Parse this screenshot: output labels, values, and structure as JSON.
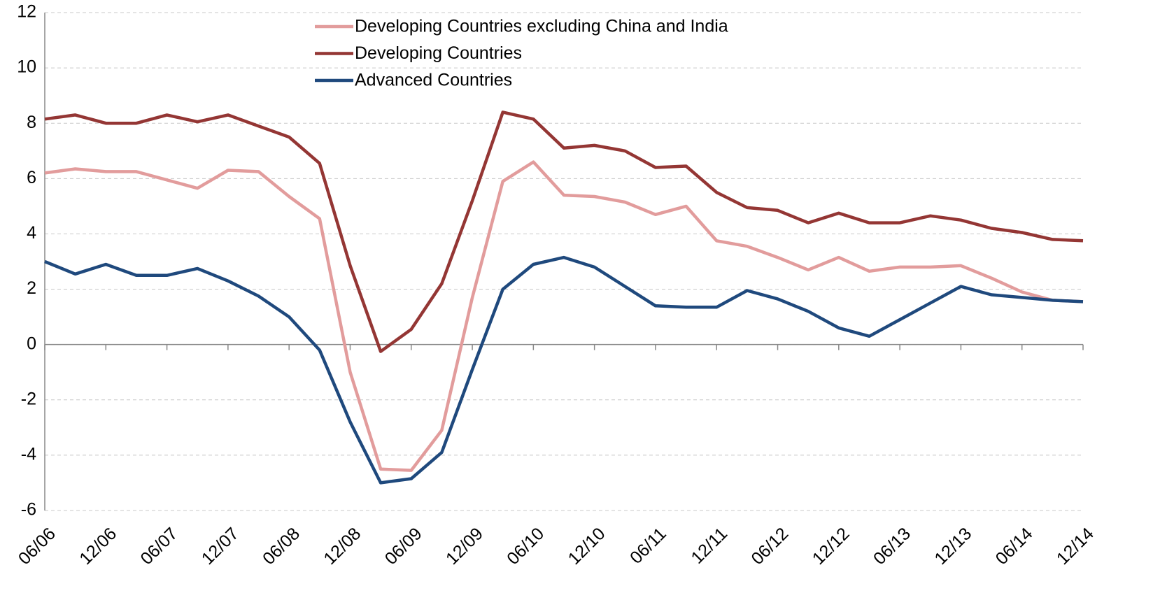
{
  "chart_data": {
    "type": "line",
    "categories": [
      "06/06",
      null,
      "12/06",
      null,
      "06/07",
      null,
      "12/07",
      null,
      "06/08",
      null,
      "12/08",
      null,
      "06/09",
      null,
      "12/09",
      null,
      "06/10",
      null,
      "12/10",
      null,
      "06/11",
      null,
      "12/11",
      null,
      "06/12",
      null,
      "12/12",
      null,
      "06/13",
      null,
      "12/13",
      null,
      "06/14",
      null,
      "12/14"
    ],
    "series": [
      {
        "name": "Developing Countries excluding China and India",
        "color": "#e29c9c",
        "values": [
          6.2,
          6.35,
          6.25,
          6.25,
          5.95,
          5.65,
          6.3,
          6.25,
          5.35,
          4.55,
          -1.0,
          -4.5,
          -4.55,
          -3.1,
          1.7,
          5.9,
          6.6,
          5.4,
          5.35,
          5.15,
          4.7,
          5.0,
          3.75,
          3.55,
          3.15,
          2.7,
          3.15,
          2.65,
          2.8,
          2.8,
          2.85,
          2.4,
          1.9,
          1.6,
          1.55
        ]
      },
      {
        "name": "Developing Countries",
        "color": "#943634",
        "values": [
          8.15,
          8.3,
          8.0,
          8.0,
          8.3,
          8.05,
          8.3,
          7.9,
          7.5,
          6.55,
          2.85,
          -0.25,
          0.55,
          2.2,
          5.2,
          8.4,
          8.15,
          7.1,
          7.2,
          7.0,
          6.4,
          6.45,
          5.5,
          4.95,
          4.85,
          4.4,
          4.75,
          4.4,
          4.4,
          4.65,
          4.5,
          4.2,
          4.05,
          3.8,
          3.75
        ]
      },
      {
        "name": "Advanced Countries",
        "color": "#1f497d",
        "values": [
          3.0,
          2.55,
          2.9,
          2.5,
          2.5,
          2.75,
          2.3,
          1.75,
          1.0,
          -0.2,
          -2.8,
          -5.0,
          -4.85,
          -3.9,
          -0.9,
          2.0,
          2.9,
          3.15,
          2.8,
          2.1,
          1.4,
          1.35,
          1.35,
          1.95,
          1.65,
          1.2,
          0.6,
          0.3,
          0.9,
          1.5,
          2.1,
          1.8,
          1.7,
          1.6,
          1.55
        ]
      }
    ],
    "ylim": [
      -6,
      12
    ],
    "yticks": [
      -6,
      -4,
      -2,
      0,
      2,
      4,
      6,
      8,
      10,
      12
    ],
    "grid": true
  }
}
